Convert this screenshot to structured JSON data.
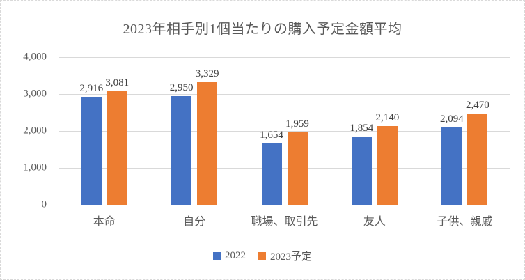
{
  "title": "2023年相手別1個当たりの購入予定金額平均",
  "chart_data": {
    "type": "bar",
    "title": "2023年相手別1個当たりの購入予定金額平均",
    "categories": [
      "本命",
      "自分",
      "職場、取引先",
      "友人",
      "子供、親戚"
    ],
    "series": [
      {
        "key": "2022",
        "name": "2022",
        "color": "#4472C4",
        "values": [
          2916,
          2950,
          1654,
          1854,
          2094
        ],
        "labels": [
          "2,916",
          "2,950",
          "1,654",
          "1,854",
          "2,094"
        ]
      },
      {
        "key": "2023-plan",
        "name": "2023予定",
        "color": "#ED7D31",
        "values": [
          3081,
          3329,
          1959,
          2140,
          2470
        ],
        "labels": [
          "3,081",
          "3,329",
          "1,959",
          "2,140",
          "2,470"
        ]
      }
    ],
    "xlabel": "",
    "ylabel": "",
    "ylim": [
      0,
      4000
    ],
    "yticks": [
      4000,
      3000,
      2000,
      1000,
      0
    ],
    "ytick_labels": [
      "4,000",
      "3,000",
      "2,000",
      "1,000",
      "0"
    ],
    "grid": true,
    "legend_position": "bottom"
  },
  "colors": {
    "title_text": "#595959",
    "axis_text": "#595959",
    "data_label_text": "#404040",
    "gridline": "#d9d9d9",
    "axis_line": "#c8c6c6",
    "series_2022": "#4472C4",
    "series_2023": "#ED7D31",
    "background": "#ffffff",
    "border": "#d9d9d9"
  }
}
